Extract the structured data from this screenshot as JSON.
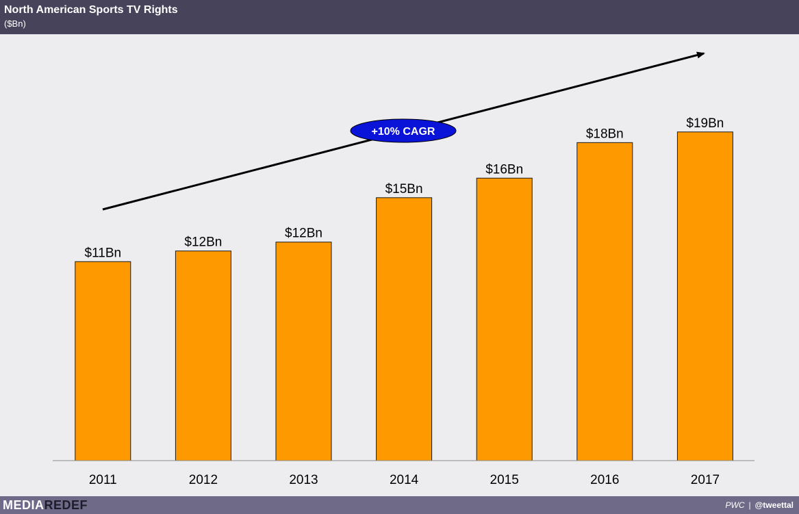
{
  "header": {
    "title": "North American Sports TV Rights",
    "subtitle": "($Bn)"
  },
  "chart_data": {
    "type": "bar",
    "title": "North American Sports TV Rights",
    "subtitle": "($Bn)",
    "categories": [
      "2011",
      "2012",
      "2013",
      "2014",
      "2015",
      "2016",
      "2017"
    ],
    "values": [
      11.2,
      11.8,
      12.3,
      14.8,
      15.9,
      17.9,
      18.5
    ],
    "data_labels": [
      "$11Bn",
      "$12Bn",
      "$12Bn",
      "$15Bn",
      "$16Bn",
      "$18Bn",
      "$19Bn"
    ],
    "ylim": [
      0,
      24
    ],
    "bar_color": "#ff9900",
    "grid": false,
    "legend": "none",
    "annotation": {
      "text": "+10% CAGR",
      "type": "trend-arrow",
      "badge_color": "#0a14d8"
    }
  },
  "footer": {
    "logo_part1": "MEDIA",
    "logo_part2": "REDEF",
    "source_name": "PWC",
    "separator": "|",
    "handle": "@tweettal"
  }
}
